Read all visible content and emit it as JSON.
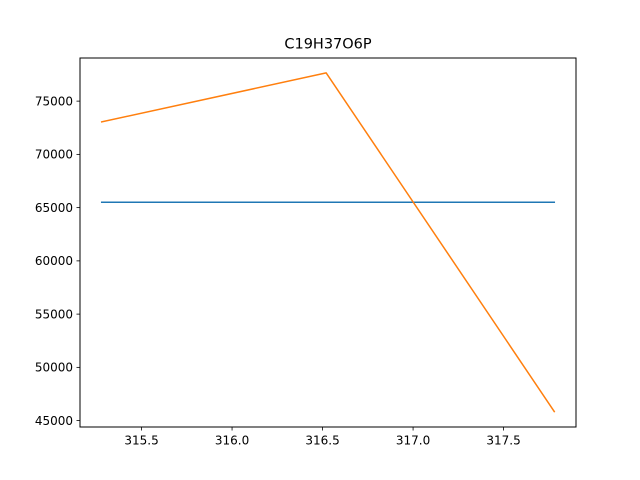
{
  "chart_data": {
    "type": "line",
    "title": "C19H37O6P",
    "xlabel": "",
    "ylabel": "",
    "xlim": [
      315.16,
      317.9
    ],
    "ylim": [
      44400,
      79050
    ],
    "x_ticks": [
      315.5,
      316.0,
      316.5,
      317.0,
      317.5
    ],
    "x_tick_labels": [
      "315.5",
      "316.0",
      "316.5",
      "317.0",
      "317.5"
    ],
    "y_ticks": [
      45000,
      50000,
      55000,
      60000,
      65000,
      70000,
      75000
    ],
    "y_tick_labels": [
      "45000",
      "50000",
      "55000",
      "60000",
      "65000",
      "70000",
      "75000"
    ],
    "grid": false,
    "series": [
      {
        "color": "#1f77b4",
        "points": [
          [
            315.28,
            65500
          ],
          [
            317.78,
            65500
          ]
        ]
      },
      {
        "color": "#ff7f0e",
        "points": [
          [
            315.28,
            73050
          ],
          [
            316.52,
            77650
          ],
          [
            317.78,
            45850
          ]
        ]
      }
    ]
  }
}
